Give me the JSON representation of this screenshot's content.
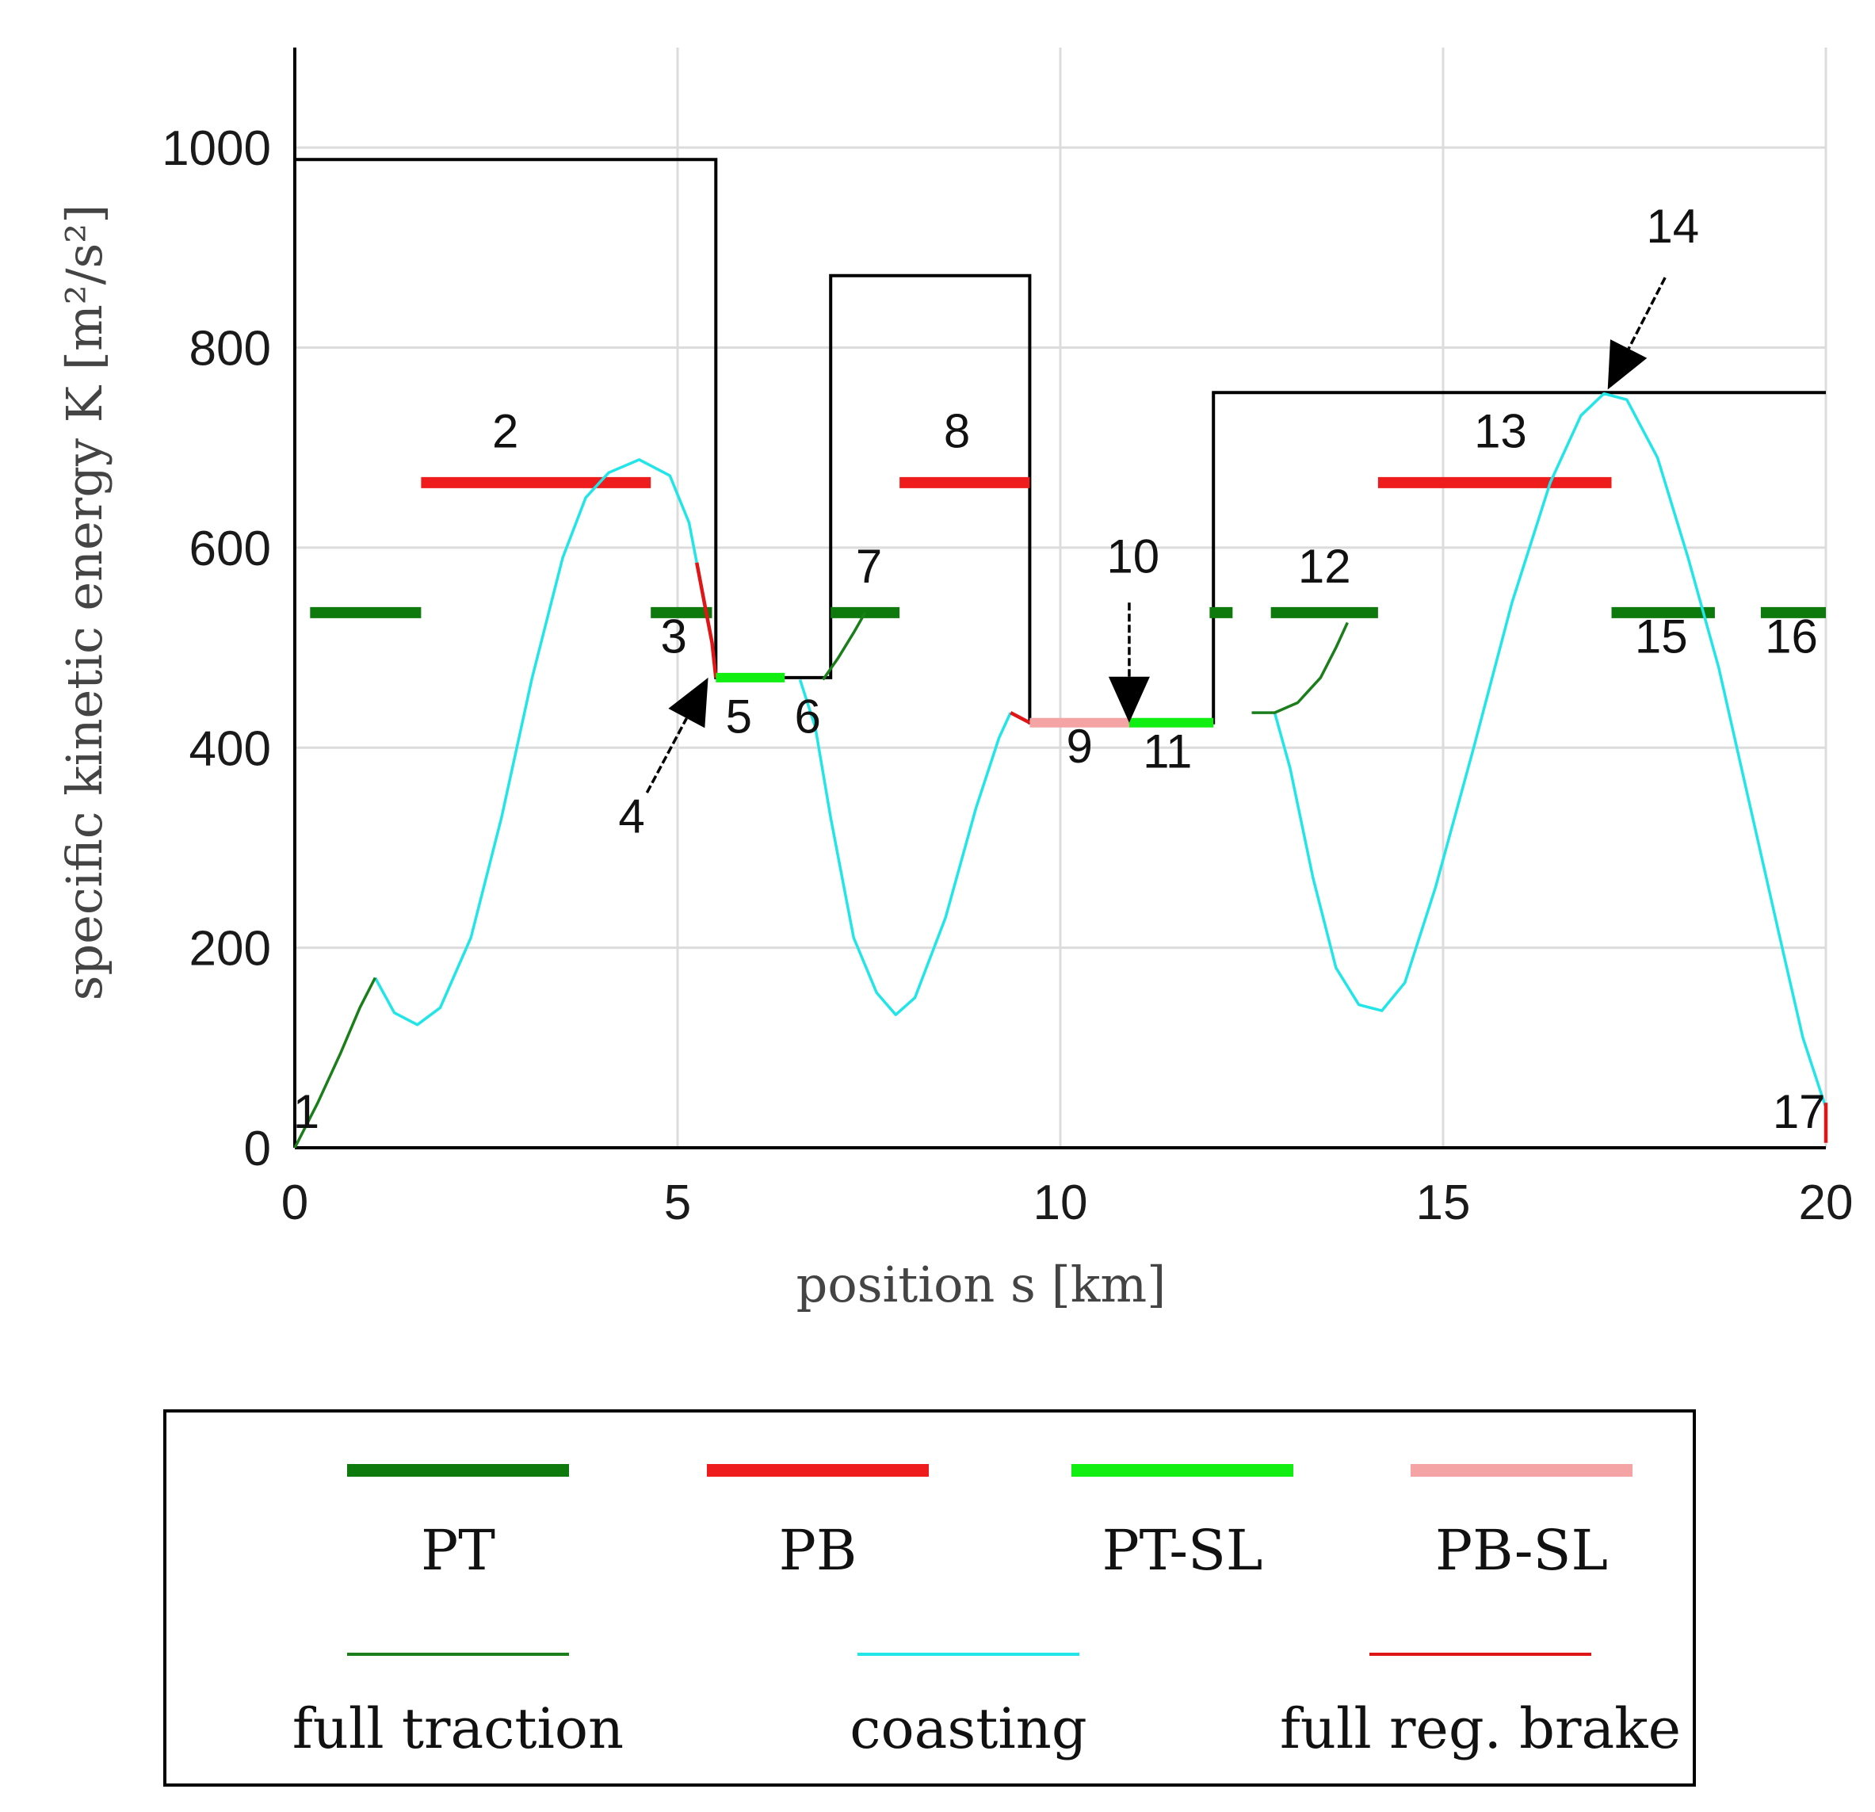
{
  "chart_data": {
    "type": "line",
    "xlabel": "position s [km]",
    "ylabel": "specific kinetic energy K [m²/s²]",
    "xlim": [
      0,
      20
    ],
    "ylim": [
      0,
      1100
    ],
    "xticks": [
      "0",
      "5",
      "10",
      "15",
      "20"
    ],
    "yticks": [
      "0",
      "200",
      "400",
      "600",
      "800",
      "1000"
    ],
    "grid": true,
    "colors": {
      "full_traction": "#1a7f1a",
      "coasting": "#22e5e8",
      "full_reg_brake": "#e01515",
      "PT": "#0e7a0e",
      "PB": "#ee1c1c",
      "PT_SL": "#11ee11",
      "PB_SL": "#f4a4a4",
      "speed_limit": "#000000"
    },
    "speed_limit": [
      [
        0,
        988
      ],
      [
        5.5,
        988
      ],
      [
        5.5,
        470
      ],
      [
        7.0,
        470
      ],
      [
        7.0,
        872
      ],
      [
        9.6,
        872
      ],
      [
        9.6,
        425
      ],
      [
        12.0,
        425
      ],
      [
        12.0,
        755
      ],
      [
        20.0,
        755
      ]
    ],
    "full_traction": [
      [
        [
          0,
          0
        ],
        [
          0.3,
          45
        ],
        [
          0.6,
          95
        ],
        [
          0.85,
          140
        ],
        [
          1.05,
          170
        ]
      ],
      [
        [
          6.9,
          468
        ],
        [
          7.1,
          490
        ],
        [
          7.3,
          515
        ],
        [
          7.45,
          535
        ]
      ],
      [
        [
          12.5,
          435
        ],
        [
          12.8,
          435
        ],
        [
          13.1,
          445
        ],
        [
          13.4,
          470
        ],
        [
          13.6,
          500
        ],
        [
          13.75,
          525
        ]
      ]
    ],
    "coasting": [
      [
        [
          1.05,
          170
        ],
        [
          1.3,
          135
        ],
        [
          1.6,
          123
        ],
        [
          1.9,
          140
        ],
        [
          2.3,
          210
        ],
        [
          2.7,
          330
        ],
        [
          3.1,
          470
        ],
        [
          3.5,
          590
        ],
        [
          3.8,
          650
        ],
        [
          4.1,
          675
        ],
        [
          4.5,
          688
        ],
        [
          4.9,
          672
        ],
        [
          5.15,
          625
        ],
        [
          5.25,
          585
        ]
      ],
      [
        [
          6.6,
          468
        ],
        [
          6.8,
          420
        ],
        [
          7.0,
          330
        ],
        [
          7.3,
          210
        ],
        [
          7.6,
          155
        ],
        [
          7.85,
          133
        ],
        [
          8.1,
          150
        ],
        [
          8.5,
          230
        ],
        [
          8.9,
          340
        ],
        [
          9.2,
          410
        ],
        [
          9.35,
          435
        ]
      ],
      [
        [
          12.8,
          435
        ],
        [
          13.0,
          380
        ],
        [
          13.3,
          270
        ],
        [
          13.6,
          180
        ],
        [
          13.9,
          143
        ],
        [
          14.2,
          137
        ],
        [
          14.5,
          165
        ],
        [
          14.9,
          260
        ],
        [
          15.4,
          400
        ],
        [
          15.9,
          545
        ],
        [
          16.4,
          665
        ],
        [
          16.8,
          732
        ],
        [
          17.1,
          754
        ],
        [
          17.4,
          748
        ],
        [
          17.8,
          690
        ],
        [
          18.2,
          590
        ],
        [
          18.6,
          480
        ],
        [
          19.0,
          345
        ],
        [
          19.4,
          210
        ],
        [
          19.7,
          110
        ],
        [
          20.0,
          40
        ]
      ]
    ],
    "full_reg_brake": [
      [
        [
          5.25,
          585
        ],
        [
          5.35,
          545
        ],
        [
          5.45,
          505
        ],
        [
          5.5,
          470
        ]
      ],
      [
        [
          9.35,
          435
        ],
        [
          9.6,
          425
        ]
      ],
      [
        [
          20.0,
          45
        ],
        [
          20.0,
          5
        ]
      ]
    ],
    "PT_SL_segments": [
      [
        [
          5.5,
          470
        ],
        [
          6.4,
          470
        ]
      ],
      [
        [
          10.9,
          425
        ],
        [
          12.0,
          425
        ]
      ]
    ],
    "PB_SL_segments": [
      [
        [
          9.6,
          425
        ],
        [
          10.9,
          425
        ]
      ]
    ],
    "PT_levels": [
      [
        0.2,
        1.65,
        535
      ],
      [
        4.65,
        5.45,
        535
      ],
      [
        7.0,
        7.9,
        535
      ],
      [
        11.95,
        12.25,
        535
      ],
      [
        12.75,
        14.15,
        535
      ],
      [
        17.2,
        18.55,
        535
      ],
      [
        19.15,
        20.0,
        535
      ]
    ],
    "PB_levels": [
      [
        1.65,
        4.65,
        665
      ],
      [
        7.9,
        9.6,
        665
      ],
      [
        14.15,
        17.2,
        665
      ]
    ],
    "annotations": [
      {
        "label": "1",
        "x": 0.15,
        "y": 20
      },
      {
        "label": "2",
        "x": 2.75,
        "y": 700
      },
      {
        "label": "3",
        "x": 4.95,
        "y": 495
      },
      {
        "label": "4",
        "x": 4.4,
        "y": 315
      },
      {
        "label": "5",
        "x": 5.8,
        "y": 415
      },
      {
        "label": "6",
        "x": 6.7,
        "y": 415
      },
      {
        "label": "7",
        "x": 7.5,
        "y": 565
      },
      {
        "label": "8",
        "x": 8.65,
        "y": 700
      },
      {
        "label": "9",
        "x": 10.25,
        "y": 385
      },
      {
        "label": "10",
        "x": 10.95,
        "y": 575
      },
      {
        "label": "11",
        "x": 11.4,
        "y": 380
      },
      {
        "label": "12",
        "x": 13.45,
        "y": 565
      },
      {
        "label": "13",
        "x": 15.75,
        "y": 700
      },
      {
        "label": "14",
        "x": 18.0,
        "y": 905
      },
      {
        "label": "15",
        "x": 17.85,
        "y": 495
      },
      {
        "label": "16",
        "x": 19.55,
        "y": 495
      },
      {
        "label": "17",
        "x": 19.65,
        "y": 20
      }
    ],
    "arrows": [
      {
        "from": [
          4.6,
          355
        ],
        "to": [
          5.4,
          470
        ]
      },
      {
        "from": [
          10.9,
          545
        ],
        "to": [
          10.9,
          425
        ]
      },
      {
        "from": [
          17.9,
          870
        ],
        "to": [
          17.15,
          758
        ]
      }
    ]
  },
  "legend": {
    "row1": [
      {
        "key": "PT",
        "label": "PT"
      },
      {
        "key": "PB",
        "label": "PB"
      },
      {
        "key": "PT_SL",
        "label": "PT-SL"
      },
      {
        "key": "PB_SL",
        "label": "PB-SL"
      }
    ],
    "row2": [
      {
        "key": "full_traction",
        "label": "full traction"
      },
      {
        "key": "coasting",
        "label": "coasting"
      },
      {
        "key": "full_reg_brake",
        "label": "full reg. brake"
      }
    ]
  }
}
